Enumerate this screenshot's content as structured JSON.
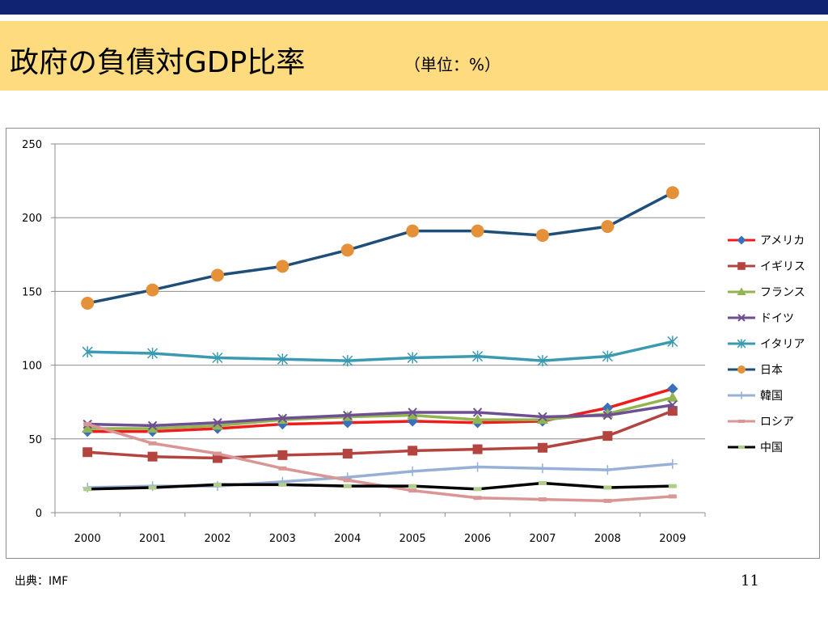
{
  "slide": {
    "title": "政府の負債対GDP比率",
    "subtitle": "（単位：%）",
    "source": "出典：IMF",
    "page_number": "11"
  },
  "colors": {
    "top_bar": "#0f2372",
    "title_band": "#fddb7e"
  },
  "chart_data": {
    "type": "line",
    "categories": [
      "2000",
      "2001",
      "2002",
      "2003",
      "2004",
      "2005",
      "2006",
      "2007",
      "2008",
      "2009"
    ],
    "ylim": [
      0,
      250
    ],
    "yticks": [
      0,
      50,
      100,
      150,
      200,
      250
    ],
    "grid": true,
    "legend_position": "right",
    "series": [
      {
        "name": "アメリカ",
        "color": "#ee1c1c",
        "marker": "diamond",
        "marker_color": "#3a6fba",
        "values": [
          55,
          55,
          57,
          60,
          61,
          62,
          61,
          62,
          71,
          84
        ]
      },
      {
        "name": "イギリス",
        "color": "#b3443f",
        "marker": "square",
        "marker_color": "#b3443f",
        "values": [
          41,
          38,
          37,
          39,
          40,
          42,
          43,
          44,
          52,
          69
        ]
      },
      {
        "name": "フランス",
        "color": "#93b551",
        "marker": "triangle",
        "marker_color": "#93b551",
        "values": [
          57,
          57,
          59,
          63,
          65,
          66,
          63,
          63,
          67,
          78
        ]
      },
      {
        "name": "ドイツ",
        "color": "#6e4f93",
        "marker": "x",
        "marker_color": "#6e4f93",
        "values": [
          60,
          59,
          61,
          64,
          66,
          68,
          68,
          65,
          66,
          73
        ]
      },
      {
        "name": "イタリア",
        "color": "#3b9ab0",
        "marker": "asterisk",
        "marker_color": "#3b9ab0",
        "values": [
          109,
          108,
          105,
          104,
          103,
          105,
          106,
          103,
          106,
          116
        ]
      },
      {
        "name": "日本",
        "color": "#1f4e79",
        "marker": "circle",
        "marker_color": "#e4913a",
        "values": [
          142,
          151,
          161,
          167,
          178,
          191,
          191,
          188,
          194,
          217
        ]
      },
      {
        "name": "韓国",
        "color": "#98b0d6",
        "marker": "plus",
        "marker_color": "#98b0d6",
        "values": [
          17,
          18,
          18,
          21,
          24,
          28,
          31,
          30,
          29,
          33
        ]
      },
      {
        "name": "ロシア",
        "color": "#d99694",
        "marker": "dash",
        "marker_color": "#d99694",
        "values": [
          60,
          47,
          40,
          30,
          22,
          15,
          10,
          9,
          8,
          11
        ]
      },
      {
        "name": "中国",
        "color": "#000000",
        "marker": "dash",
        "marker_color": "#b0cc8a",
        "values": [
          16,
          17,
          19,
          19,
          18,
          18,
          16,
          20,
          17,
          18
        ]
      }
    ]
  }
}
